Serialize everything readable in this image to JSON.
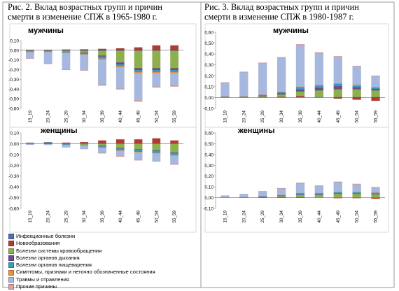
{
  "titles": {
    "left": "Рис. 2. Вклад возрастных групп и причин\nсмерти в изменение СПЖ в 1965-1980 г.",
    "right": "Рис. 3. Вклад возрастных групп и причин\nсмерти в изменение СПЖ в 1980-1987 г."
  },
  "colors": {
    "Инфекционные болезни": "#4f6fad",
    "Новообразования": "#b23a33",
    "Болезни системы кровообращения": "#8db04b",
    "Болезни органов дыхания": "#6b4c8f",
    "Болезни органов пищеварения": "#3a9bbd",
    "Симптомы, признаки и неточно обозначенные состояния": "#e8903a",
    "Травмы и отравления": "#a7b8e0",
    "Прочие причины": "#e0a09c"
  },
  "legend": [
    "Инфекционные болезни",
    "Новообразования",
    "Болезни системы кровообращения",
    "Болезни органов дыхания",
    "Болезни органов пищеварения",
    "Симптомы, признаки и неточно обозначенные состояния",
    "Травмы и отравления",
    "Прочие причины"
  ],
  "chart_data": [
    {
      "type": "bar",
      "stacked": true,
      "panel": "1965-1980, мужчины",
      "title": "мужчины",
      "categories": [
        "15_19",
        "20_24",
        "25_29",
        "30_34",
        "35_39",
        "40_44",
        "45_49",
        "50_54",
        "55_59"
      ],
      "ylim": [
        -0.6,
        0.1
      ],
      "yticks": [
        "0,10",
        "0,00",
        "-0,10",
        "-0,20",
        "-0,30",
        "-0,40",
        "-0,50",
        "-0,60"
      ],
      "series": [
        {
          "name": "Инфекционные болезни",
          "values": [
            -0.005,
            -0.005,
            -0.005,
            -0.005,
            -0.005,
            -0.005,
            -0.005,
            -0.005,
            -0.005
          ]
        },
        {
          "name": "Новообразования",
          "values": [
            0.005,
            0.005,
            0.008,
            0.01,
            0.015,
            0.02,
            0.03,
            0.05,
            0.05
          ]
        },
        {
          "name": "Болезни системы кровообращения",
          "values": [
            -0.005,
            -0.005,
            -0.01,
            -0.02,
            -0.05,
            -0.12,
            -0.18,
            -0.18,
            -0.18
          ]
        },
        {
          "name": "Болезни органов дыхания",
          "values": [
            0.0,
            0.0,
            0.0,
            -0.005,
            -0.01,
            -0.02,
            -0.02,
            -0.02,
            -0.02
          ]
        },
        {
          "name": "Болезни органов пищеварения",
          "values": [
            -0.005,
            -0.005,
            -0.01,
            -0.01,
            -0.02,
            -0.02,
            -0.02,
            -0.02,
            -0.02
          ]
        },
        {
          "name": "Симптомы, признаки и неточно обозначенные состояния",
          "values": [
            -0.002,
            -0.002,
            -0.003,
            -0.005,
            -0.01,
            -0.01,
            -0.01,
            -0.01,
            -0.01
          ]
        },
        {
          "name": "Травмы и отравления",
          "values": [
            -0.065,
            -0.12,
            -0.17,
            -0.16,
            -0.26,
            -0.22,
            -0.28,
            -0.14,
            -0.13
          ]
        },
        {
          "name": "Прочие причины",
          "values": [
            -0.005,
            -0.005,
            -0.005,
            -0.005,
            -0.01,
            -0.01,
            -0.015,
            -0.01,
            -0.01
          ]
        }
      ]
    },
    {
      "type": "bar",
      "stacked": true,
      "panel": "1965-1980, женщины",
      "title": "женщины",
      "categories": [
        "15_19",
        "20_24",
        "25_29",
        "30_34",
        "35_39",
        "40_44",
        "45_49",
        "50_54",
        "55_59"
      ],
      "ylim": [
        -0.6,
        0.1
      ],
      "yticks": [
        "0,10",
        "0,00",
        "-0,10",
        "-0,20",
        "-0,30",
        "-0,40",
        "-0,50",
        "-0,60"
      ],
      "series": [
        {
          "name": "Инфекционные болезни",
          "values": [
            0.0,
            0.0,
            0.0,
            0.0,
            0.0,
            0.0,
            0.0,
            0.0,
            0.0
          ]
        },
        {
          "name": "Новообразования",
          "values": [
            0.005,
            0.01,
            0.01,
            0.015,
            0.03,
            0.04,
            0.04,
            0.05,
            0.03
          ]
        },
        {
          "name": "Болезни системы кровообращения",
          "values": [
            0.0,
            -0.002,
            -0.005,
            -0.01,
            -0.02,
            -0.04,
            -0.05,
            -0.06,
            -0.08
          ]
        },
        {
          "name": "Болезни органов дыхания",
          "values": [
            0.0,
            0.0,
            0.0,
            0.0,
            -0.005,
            -0.005,
            -0.005,
            -0.005,
            -0.005
          ]
        },
        {
          "name": "Болезни органов пищеварения",
          "values": [
            0.005,
            0.005,
            -0.005,
            -0.005,
            -0.01,
            -0.015,
            -0.02,
            -0.02,
            -0.02
          ]
        },
        {
          "name": "Симптомы, признаки и неточно обозначенные состояния",
          "values": [
            0.0,
            0.0,
            0.0,
            0.0,
            0.0,
            -0.005,
            -0.005,
            -0.005,
            -0.005
          ]
        },
        {
          "name": "Травмы и отравления",
          "values": [
            -0.01,
            -0.01,
            -0.025,
            -0.035,
            -0.05,
            -0.05,
            -0.07,
            -0.07,
            -0.08
          ]
        },
        {
          "name": "Прочие причины",
          "values": [
            0.0,
            0.0,
            0.0,
            0.0,
            -0.005,
            -0.005,
            -0.005,
            -0.005,
            -0.005
          ]
        }
      ]
    },
    {
      "type": "bar",
      "stacked": true,
      "panel": "1980-1987, мужчины",
      "title": "мужчины",
      "categories": [
        "15_19",
        "20_24",
        "25_29",
        "30_34",
        "35_39",
        "40_44",
        "45_49",
        "50_54",
        "55_59"
      ],
      "ylim": [
        -0.1,
        0.6
      ],
      "yticks": [
        "0,60",
        "0,50",
        "0,40",
        "0,30",
        "0,20",
        "0,10",
        "0,00",
        "-0,10"
      ],
      "series": [
        {
          "name": "Инфекционные болезни",
          "values": [
            0.002,
            0.002,
            0.002,
            0.003,
            0.005,
            0.005,
            0.005,
            0.005,
            0.005
          ]
        },
        {
          "name": "Новообразования",
          "values": [
            0.0,
            0.0,
            0.0,
            0.005,
            0.01,
            0.0,
            -0.01,
            -0.02,
            -0.03
          ]
        },
        {
          "name": "Болезни системы кровообращения",
          "values": [
            0.005,
            0.005,
            0.01,
            0.02,
            0.04,
            0.06,
            0.07,
            0.07,
            0.06
          ]
        },
        {
          "name": "Болезни органов дыхания",
          "values": [
            0.0,
            0.0,
            0.005,
            0.01,
            0.02,
            0.025,
            0.03,
            0.02,
            0.015
          ]
        },
        {
          "name": "Болезни органов пищеварения",
          "values": [
            0.002,
            0.004,
            0.005,
            0.01,
            0.02,
            0.02,
            0.02,
            0.015,
            0.01
          ]
        },
        {
          "name": "Симптомы, признаки и неточно обозначенные состояния",
          "values": [
            0.002,
            0.002,
            0.003,
            0.005,
            0.005,
            0.005,
            0.005,
            0.005,
            0.005
          ]
        },
        {
          "name": "Травмы и отравления",
          "values": [
            0.125,
            0.22,
            0.29,
            0.31,
            0.38,
            0.29,
            0.24,
            0.17,
            0.1
          ]
        },
        {
          "name": "Прочие причины",
          "values": [
            0.004,
            0.004,
            0.005,
            0.007,
            0.01,
            0.01,
            0.01,
            0.005,
            0.005
          ]
        }
      ]
    },
    {
      "type": "bar",
      "stacked": true,
      "panel": "1980-1987, женщины",
      "title": "женщины",
      "categories": [
        "15_19",
        "20_24",
        "25_29",
        "30_34",
        "35_39",
        "40_44",
        "45_49",
        "50_54",
        "55_59"
      ],
      "ylim": [
        -0.1,
        0.6
      ],
      "yticks": [
        "0,60",
        "0,50",
        "0,40",
        "0,30",
        "0,20",
        "0,10",
        "0,00",
        "-0,10"
      ],
      "series": [
        {
          "name": "Инфекционные болезни",
          "values": [
            0.0,
            0.0,
            0.0,
            0.0,
            0.0,
            0.0,
            0.0,
            0.0,
            0.0
          ]
        },
        {
          "name": "Новообразования",
          "values": [
            0.0,
            0.0,
            0.003,
            0.005,
            0.005,
            0.0,
            -0.005,
            -0.005,
            -0.01
          ]
        },
        {
          "name": "Болезни системы кровообращения",
          "values": [
            0.002,
            0.003,
            0.005,
            0.01,
            0.02,
            0.025,
            0.035,
            0.035,
            0.03
          ]
        },
        {
          "name": "Болезни органов дыхания",
          "values": [
            0.0,
            0.0,
            0.002,
            0.003,
            0.005,
            0.005,
            0.005,
            0.005,
            0.005
          ]
        },
        {
          "name": "Болезни органов пищеварения",
          "values": [
            0.0,
            0.002,
            0.003,
            0.005,
            0.01,
            0.01,
            0.01,
            0.01,
            0.01
          ]
        },
        {
          "name": "Симптомы, признаки и неточно обозначенные состояния",
          "values": [
            0.0,
            0.0,
            0.0,
            0.002,
            0.003,
            0.003,
            0.003,
            0.003,
            0.003
          ]
        },
        {
          "name": "Травмы и отравления",
          "values": [
            0.018,
            0.03,
            0.045,
            0.06,
            0.09,
            0.065,
            0.09,
            0.07,
            0.045
          ]
        },
        {
          "name": "Прочие причины",
          "values": [
            0.0,
            0.0,
            0.002,
            0.003,
            0.005,
            0.005,
            0.005,
            0.005,
            0.005
          ]
        }
      ]
    }
  ]
}
